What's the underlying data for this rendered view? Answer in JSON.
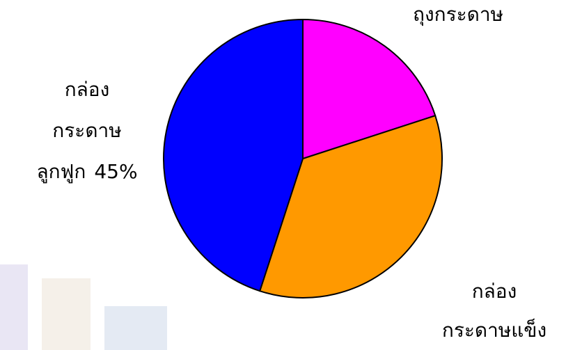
{
  "chart_data": {
    "type": "pie",
    "categories": [
      [
        "ถุงกระดาษ"
      ],
      [
        "กล่อง",
        "กระดาษแข็ง"
      ],
      [
        "กล่อง",
        "กระดาษ",
        "ลูกฟูก"
      ]
    ],
    "values": [
      20,
      35,
      45
    ],
    "value_labels": [
      null,
      null,
      "45%"
    ],
    "colors": [
      "#ff00ff",
      "#ff9900",
      "#0000ff"
    ]
  }
}
